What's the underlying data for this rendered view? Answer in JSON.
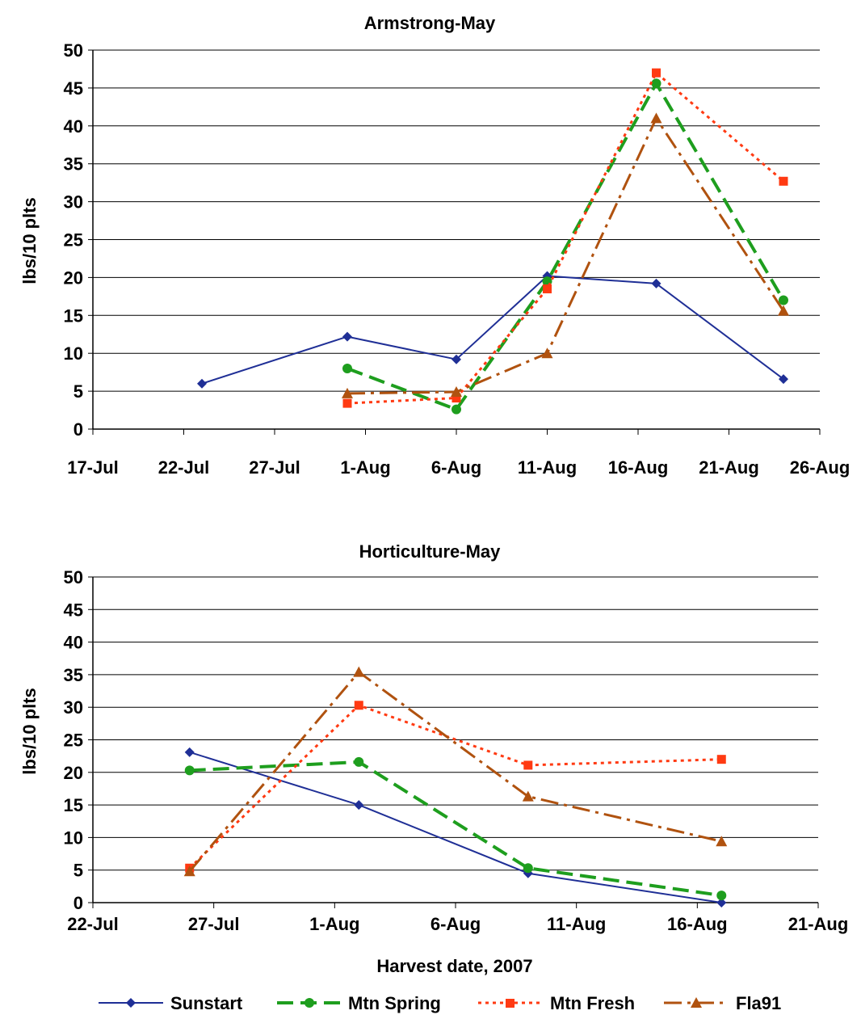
{
  "chart_data": [
    {
      "type": "line",
      "title": "Armstrong-May",
      "xlabel": "",
      "ylabel": "lbs/10 plts",
      "xlim": [
        "17-Jul",
        "26-Aug"
      ],
      "x_ticks": [
        "17-Jul",
        "22-Jul",
        "27-Jul",
        "1-Aug",
        "6-Aug",
        "11-Aug",
        "16-Aug",
        "21-Aug",
        "26-Aug"
      ],
      "ylim": [
        0,
        50
      ],
      "y_ticks": [
        0,
        5,
        10,
        15,
        20,
        25,
        30,
        35,
        40,
        45,
        50
      ],
      "grid": "horizontal",
      "series": [
        {
          "name": "Sunstart",
          "x": [
            "23-Jul",
            "31-Jul",
            "6-Aug",
            "11-Aug",
            "17-Aug",
            "24-Aug"
          ],
          "y": [
            6,
            12.2,
            9.2,
            20.2,
            19.2,
            6.6
          ]
        },
        {
          "name": "Mtn Spring",
          "x": [
            "31-Jul",
            "6-Aug",
            "11-Aug",
            "17-Aug",
            "24-Aug"
          ],
          "y": [
            8,
            2.6,
            19.5,
            45.6,
            17
          ]
        },
        {
          "name": "Mtn Fresh",
          "x": [
            "31-Jul",
            "6-Aug",
            "11-Aug",
            "17-Aug",
            "24-Aug"
          ],
          "y": [
            3.4,
            4.1,
            18.5,
            47,
            32.7
          ]
        },
        {
          "name": "Fla91",
          "x": [
            "31-Jul",
            "6-Aug",
            "11-Aug",
            "17-Aug",
            "24-Aug"
          ],
          "y": [
            4.7,
            4.9,
            10,
            41,
            15.6
          ]
        }
      ]
    },
    {
      "type": "line",
      "title": "Horticulture-May",
      "xlabel": "Harvest date, 2007",
      "ylabel": "lbs/10 plts",
      "xlim": [
        "22-Jul",
        "21-Aug"
      ],
      "x_ticks": [
        "22-Jul",
        "27-Jul",
        "1-Aug",
        "6-Aug",
        "11-Aug",
        "16-Aug",
        "21-Aug"
      ],
      "ylim": [
        0,
        50
      ],
      "y_ticks": [
        0,
        5,
        10,
        15,
        20,
        25,
        30,
        35,
        40,
        45,
        50
      ],
      "grid": "horizontal",
      "series": [
        {
          "name": "Sunstart",
          "x": [
            "26-Jul",
            "2-Aug",
            "9-Aug",
            "17-Aug"
          ],
          "y": [
            23.1,
            15,
            4.5,
            0
          ]
        },
        {
          "name": "Mtn Spring",
          "x": [
            "26-Jul",
            "2-Aug",
            "9-Aug",
            "17-Aug"
          ],
          "y": [
            20.3,
            21.6,
            5.3,
            1.1
          ]
        },
        {
          "name": "Mtn Fresh",
          "x": [
            "26-Jul",
            "2-Aug",
            "9-Aug",
            "17-Aug"
          ],
          "y": [
            5.3,
            30.3,
            21.1,
            22
          ]
        },
        {
          "name": "Fla91",
          "x": [
            "26-Jul",
            "2-Aug",
            "9-Aug",
            "17-Aug"
          ],
          "y": [
            4.8,
            35.4,
            16.3,
            9.4
          ]
        }
      ]
    }
  ],
  "legend": {
    "placement": "bottom",
    "items": [
      "Sunstart",
      "Mtn Spring",
      "Mtn Fresh",
      "Fla91"
    ]
  },
  "colors": {
    "Sunstart": "#1f2f96",
    "Mtn Spring": "#1e9e1e",
    "Mtn Fresh": "#ff3a12",
    "Fla91": "#b0520f"
  }
}
